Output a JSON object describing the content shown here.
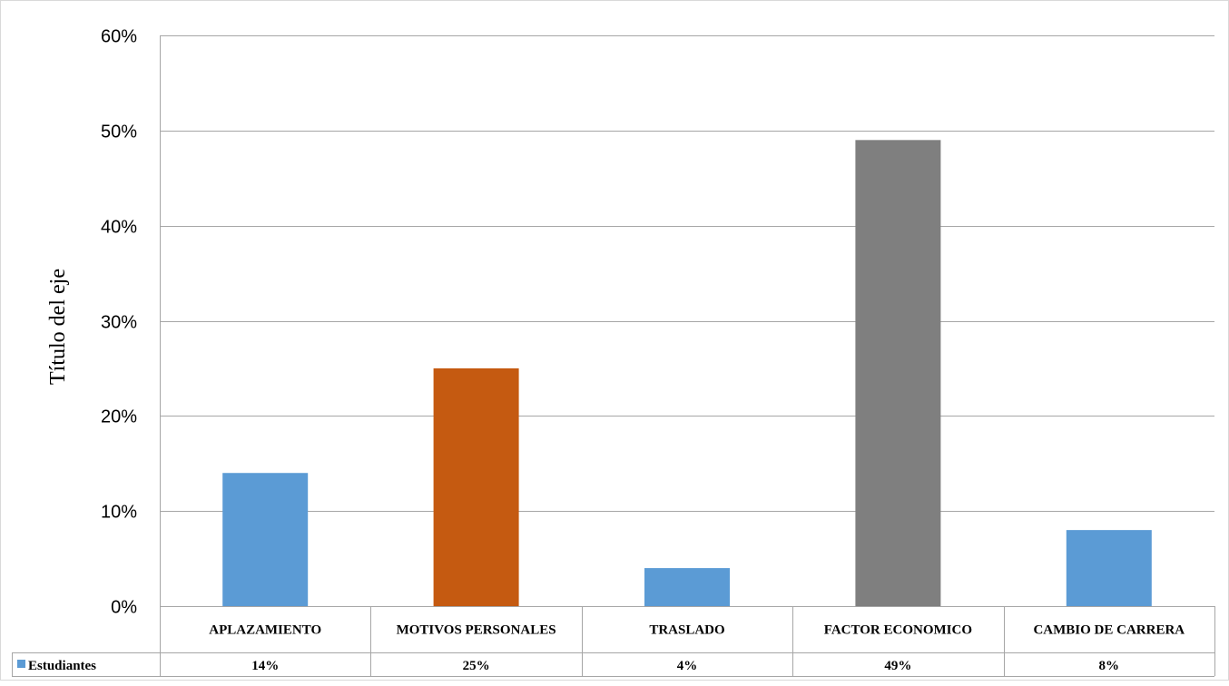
{
  "chart_data": {
    "type": "bar",
    "categories": [
      "APLAZAMIENTO",
      "MOTIVOS PERSONALES",
      "TRASLADO",
      "FACTOR ECONOMICO",
      "CAMBIO DE CARRERA"
    ],
    "series": [
      {
        "name": "Estudiantes",
        "values": [
          14,
          25,
          4,
          49,
          8
        ],
        "value_labels": [
          "14%",
          "25%",
          "4%",
          "49%",
          "8%"
        ],
        "bar_colors": [
          "#5b9bd5",
          "#c55a11",
          "#5b9bd5",
          "#7f7f7f",
          "#5b9bd5"
        ],
        "legend_color": "#5b9bd5"
      }
    ],
    "title": "",
    "xlabel": "",
    "ylabel": "Título del eje",
    "ylim": [
      0,
      60
    ],
    "yticks": [
      0,
      10,
      20,
      30,
      40,
      50,
      60
    ],
    "ytick_labels": [
      "0%",
      "10%",
      "20%",
      "30%",
      "40%",
      "50%",
      "60%"
    ],
    "grid": true,
    "data_table": true
  }
}
